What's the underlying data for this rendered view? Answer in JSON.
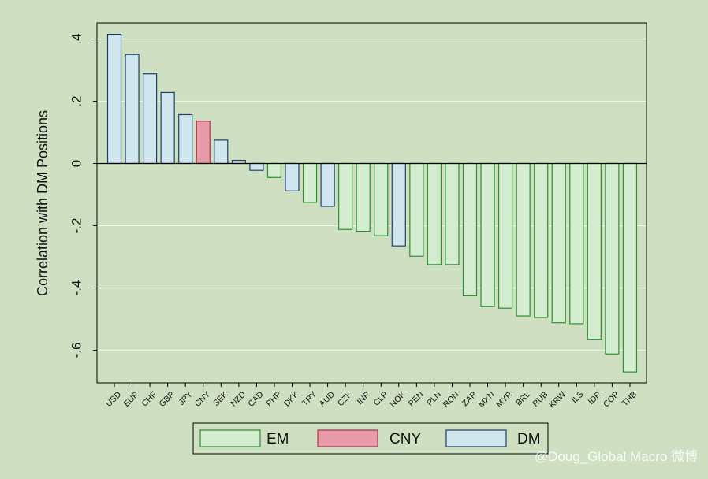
{
  "chart_data": {
    "type": "bar",
    "title": "",
    "ylabel": "Correlation with DM Positions",
    "xlabel": "",
    "ylim": [
      -0.7,
      0.45
    ],
    "yticks": [
      0.4,
      0.2,
      0,
      -0.2,
      -0.4,
      -0.6
    ],
    "ytick_labels": [
      ".4",
      ".2",
      "0",
      "-.2",
      "-.4",
      "-.6"
    ],
    "grid": true,
    "legend_position": "bottom",
    "categories": [
      "USD",
      "EUR",
      "CHF",
      "GBP",
      "JPY",
      "CNY",
      "SEK",
      "NZD",
      "CAD",
      "PHP",
      "DKK",
      "TRY",
      "AUD",
      "CZK",
      "INR",
      "CLP",
      "NOK",
      "PEN",
      "PLN",
      "RON",
      "ZAR",
      "MXN",
      "MYR",
      "BRL",
      "RUB",
      "KRW",
      "ILS",
      "IDR",
      "COP",
      "THB"
    ],
    "values": [
      0.415,
      0.35,
      0.288,
      0.228,
      0.157,
      0.136,
      0.075,
      0.01,
      -0.022,
      -0.045,
      -0.088,
      -0.125,
      -0.138,
      -0.212,
      -0.218,
      -0.232,
      -0.265,
      -0.298,
      -0.325,
      -0.325,
      -0.425,
      -0.46,
      -0.465,
      -0.49,
      -0.495,
      -0.512,
      -0.515,
      -0.565,
      -0.612,
      -0.67
    ],
    "groups": [
      "DM",
      "DM",
      "DM",
      "DM",
      "DM",
      "CNY",
      "DM",
      "DM",
      "DM",
      "EM",
      "DM",
      "EM",
      "DM",
      "EM",
      "EM",
      "EM",
      "DM",
      "EM",
      "EM",
      "EM",
      "EM",
      "EM",
      "EM",
      "EM",
      "EM",
      "EM",
      "EM",
      "EM",
      "EM",
      "EM"
    ],
    "legend": [
      {
        "key": "EM",
        "label": "EM"
      },
      {
        "key": "CNY",
        "label": "CNY"
      },
      {
        "key": "DM",
        "label": "DM"
      }
    ],
    "colors": {
      "EM": {
        "fill": "#d4edd0",
        "stroke": "#2f8f2f"
      },
      "CNY": {
        "fill": "#e89aa8",
        "stroke": "#b03050"
      },
      "DM": {
        "fill": "#cfe6ef",
        "stroke": "#1c3f6e"
      },
      "background": "#cfdfc1",
      "plot_background": "#ffffff00",
      "grid": "#eef5ea"
    }
  },
  "watermark": "@Doug_Global Macro 微博"
}
